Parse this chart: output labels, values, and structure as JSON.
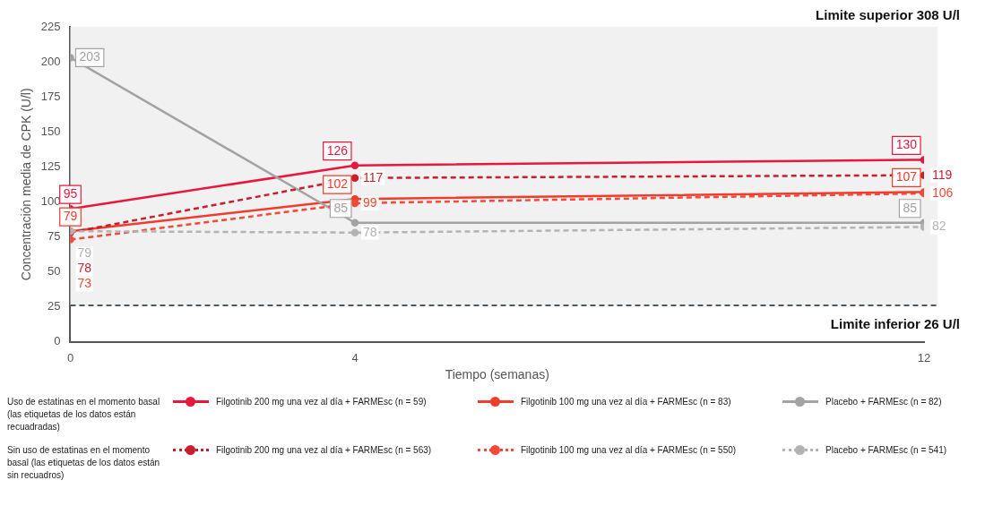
{
  "chart_data": {
    "type": "line",
    "xlabel": "Tiempo (semanas)",
    "ylabel": "Concentración media de CPK (U/l)",
    "x": [
      0,
      4,
      12
    ],
    "xlim": [
      0,
      12
    ],
    "xticks": [
      0,
      4,
      12
    ],
    "ylim": [
      0,
      225
    ],
    "yticks": [
      0,
      25,
      50,
      75,
      100,
      125,
      150,
      175,
      200,
      225
    ],
    "grid": false,
    "marker": "circle",
    "legend": "bottom",
    "series": [
      {
        "name": "Filgotinib 200 mg una vez al día + FARMEsc (n = 59)",
        "color": "#e8173c",
        "line_style": "solid",
        "values": [
          95,
          126,
          130
        ],
        "value_labels": [
          "95",
          "126",
          "130"
        ]
      },
      {
        "name": "Filgotinib 100 mg una vez al día + FARMEsc (n = 83)",
        "color": "#f03c2c",
        "line_style": "solid",
        "values": [
          79,
          102,
          107
        ],
        "value_labels": [
          "79",
          "102",
          "107"
        ]
      },
      {
        "name": "Placebo + FARMEsc (n = 82)",
        "color": "#a3a3a3",
        "line_style": "solid",
        "values": [
          203,
          85,
          85
        ],
        "value_labels": [
          "203",
          "85",
          "85"
        ]
      },
      {
        "name": "Filgotinib 200 mg una vez al día + FARMEsc (n = 563)",
        "color": "#c81e2e",
        "line_style": "dashed",
        "values": [
          78,
          117,
          119
        ],
        "value_labels": [
          "78",
          "117",
          "119"
        ]
      },
      {
        "name": "Filgotinib 100 mg una vez al día + FARMEsc (n = 550)",
        "color": "#f24a36",
        "line_style": "dashed",
        "values": [
          73,
          99,
          106
        ],
        "value_labels": [
          "73",
          "99",
          "106"
        ]
      },
      {
        "name": "Placebo + FARMEsc (n = 541)",
        "color": "#b3b3b3",
        "line_style": "dashed",
        "values": [
          79,
          78,
          82
        ],
        "value_labels": [
          "79",
          "78",
          "82"
        ]
      }
    ],
    "ref_lines": [
      {
        "axis": "y",
        "value": 26,
        "label": "Limite inferior 26 U/l",
        "color": "#4a5a66",
        "line_style": "dashed"
      }
    ],
    "bands": [
      {
        "axis": "y",
        "from": 26,
        "to": 225,
        "color": "#f1f1f1"
      }
    ],
    "annotations": [
      "Limite superior 308 U/l",
      "Uso de estatinas en el momento basal (las etiquetas de los datos están recuadradas)",
      "Sin uso de estatinas en el momento basal (las etiquetas de los datos están sin recuadros)"
    ]
  }
}
